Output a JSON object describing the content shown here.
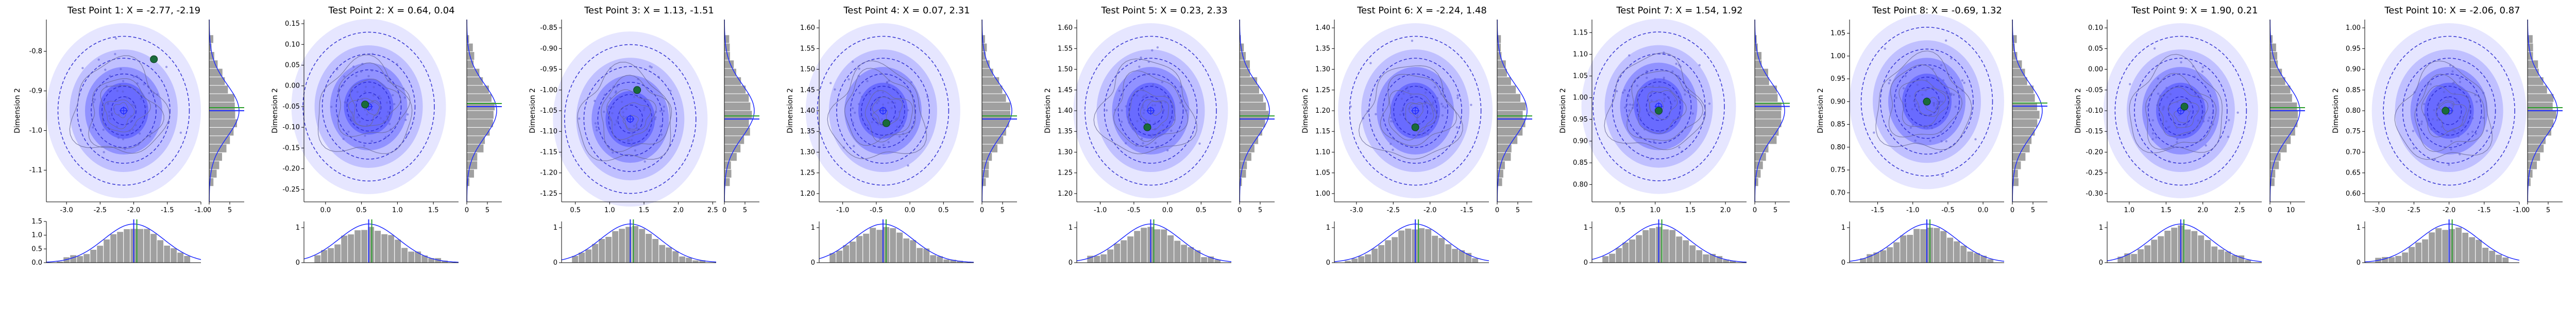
{
  "figure": {
    "panels": [
      {
        "title": "Test Point 1: X = -2.77, -2.19",
        "ylabel": "Dimension 2",
        "x_ticks": [
          "-3.0",
          "-2.5",
          "-2.0",
          "-1.5",
          "-1.0"
        ],
        "y_ticks": [
          "-0.8",
          "-0.9",
          "-1.0",
          "-1.1"
        ],
        "top_hist_ticks": [
          "0",
          "5"
        ],
        "bottom_hist_y_ticks": [
          "0.0",
          "0.5",
          "1.0",
          "1.5"
        ]
      },
      {
        "title": "Test Point 2: X = 0.64, 0.04",
        "ylabel": "Dimension 2",
        "x_ticks": [
          "0.0",
          "0.5",
          "1.0",
          "1.5"
        ],
        "y_ticks": [
          "0.15",
          "0.10",
          "0.05",
          "0.00",
          "-0.05",
          "-0.10",
          "-0.15",
          "-0.20",
          "-0.25"
        ],
        "top_hist_ticks": [
          "0",
          "5"
        ],
        "bottom_hist_y_ticks": [
          "0",
          "1"
        ]
      },
      {
        "title": "Test Point 3: X = 1.13, -1.51",
        "ylabel": "Dimension 2",
        "x_ticks": [
          "0.5",
          "1.0",
          "1.5",
          "2.0",
          "2.5"
        ],
        "y_ticks": [
          "-0.85",
          "-0.90",
          "-0.95",
          "-1.00",
          "-1.05",
          "-1.10",
          "-1.15",
          "-1.20",
          "-1.25"
        ],
        "top_hist_ticks": [
          "0",
          "5"
        ],
        "bottom_hist_y_ticks": [
          "0",
          "1"
        ]
      },
      {
        "title": "Test Point 4: X = 0.07, 2.31",
        "ylabel": "Dimension 2",
        "x_ticks": [
          "-1.0",
          "-0.5",
          "0.0",
          "0.5"
        ],
        "y_ticks": [
          "1.60",
          "1.55",
          "1.50",
          "1.45",
          "1.40",
          "1.35",
          "1.30",
          "1.25",
          "1.20"
        ],
        "top_hist_ticks": [
          "0",
          "5"
        ],
        "bottom_hist_y_ticks": [
          "0",
          "1"
        ]
      },
      {
        "title": "Test Point 5: X = 0.23, 2.33",
        "ylabel": "Dimension 2",
        "x_ticks": [
          "-1.0",
          "-0.5",
          "0.0",
          "0.5"
        ],
        "y_ticks": [
          "1.60",
          "1.55",
          "1.50",
          "1.45",
          "1.40",
          "1.35",
          "1.30",
          "1.25",
          "1.20"
        ],
        "top_hist_ticks": [
          "0",
          "5"
        ],
        "bottom_hist_y_ticks": [
          "0",
          "1"
        ]
      },
      {
        "title": "Test Point 6: X = -2.24, 1.48",
        "ylabel": "Dimension 2",
        "x_ticks": [
          "-3.0",
          "-2.5",
          "-2.0",
          "-1.5"
        ],
        "y_ticks": [
          "1.40",
          "1.35",
          "1.30",
          "1.25",
          "1.20",
          "1.15",
          "1.10",
          "1.05",
          "1.00"
        ],
        "top_hist_ticks": [
          "0",
          "5"
        ],
        "bottom_hist_y_ticks": [
          "0",
          "1"
        ]
      },
      {
        "title": "Test Point 7: X = 1.54, 1.92",
        "ylabel": "Dimension 2",
        "x_ticks": [
          "0.5",
          "1.0",
          "1.5",
          "2.0"
        ],
        "y_ticks": [
          "1.15",
          "1.10",
          "1.05",
          "1.00",
          "0.95",
          "0.90",
          "0.85",
          "0.80"
        ],
        "top_hist_ticks": [
          "0",
          "5"
        ],
        "bottom_hist_y_ticks": [
          "0",
          "1"
        ]
      },
      {
        "title": "Test Point 8: X = -0.69, 1.32",
        "ylabel": "Dimension 2",
        "x_ticks": [
          "-1.5",
          "-1.0",
          "-0.5",
          "0.0"
        ],
        "y_ticks": [
          "1.05",
          "1.00",
          "0.95",
          "0.90",
          "0.85",
          "0.80",
          "0.75",
          "0.70"
        ],
        "top_hist_ticks": [
          "0",
          "5"
        ],
        "bottom_hist_y_ticks": [
          "0",
          "1"
        ]
      },
      {
        "title": "Test Point 9: X = 1.90, 0.21",
        "ylabel": "Dimension 2",
        "x_ticks": [
          "1.0",
          "1.5",
          "2.0",
          "2.5"
        ],
        "y_ticks": [
          "0.10",
          "0.05",
          "0.00",
          "-0.05",
          "-0.10",
          "-0.15",
          "-0.20",
          "-0.25",
          "-0.30"
        ],
        "top_hist_ticks": [
          "0",
          "10"
        ],
        "bottom_hist_y_ticks": [
          "0",
          "1"
        ]
      },
      {
        "title": "Test Point 10: X = -2.06, 0.87",
        "ylabel": "Dimension 2",
        "x_ticks": [
          "-3.0",
          "-2.5",
          "-2.0",
          "-1.5",
          "-1.0"
        ],
        "y_ticks": [
          "1.00",
          "0.95",
          "0.90",
          "0.85",
          "0.80",
          "0.75",
          "0.70",
          "0.65",
          "0.60"
        ],
        "top_hist_ticks": [
          "0",
          "5"
        ],
        "bottom_hist_y_ticks": [
          "0",
          "1"
        ]
      }
    ]
  },
  "chart_data": [
    {
      "type": "scatter",
      "title": "Test Point 1: X = -2.77, -2.19",
      "ylabel": "Dimension 2",
      "xlim": [
        -3.3,
        -1.0
      ],
      "ylim": [
        -1.18,
        -0.72
      ],
      "gaussian_center": [
        -2.15,
        -0.95
      ],
      "marginal_x_mean": -2.0,
      "marginal_y_mean": -0.95,
      "green_marker": [
        -1.7,
        -0.82
      ],
      "series": [
        {
          "name": "blue_mean",
          "color": "#1f2bff"
        },
        {
          "name": "green_true",
          "color": "#2ca02c"
        },
        {
          "name": "histogram",
          "color": "#a0a0a0"
        }
      ]
    },
    {
      "type": "scatter",
      "title": "Test Point 2: X = 0.64, 0.04",
      "ylabel": "Dimension 2",
      "xlim": [
        -0.3,
        1.85
      ],
      "ylim": [
        -0.28,
        0.16
      ],
      "gaussian_center": [
        0.6,
        -0.05
      ],
      "marginal_x_mean": 0.6,
      "marginal_y_mean": -0.05,
      "green_marker": [
        0.55,
        -0.045
      ],
      "series": [
        {
          "name": "blue_mean",
          "color": "#1f2bff"
        },
        {
          "name": "green_true",
          "color": "#2ca02c"
        },
        {
          "name": "histogram",
          "color": "#a0a0a0"
        }
      ]
    },
    {
      "type": "scatter",
      "title": "Test Point 3: X = 1.13, -1.51",
      "ylabel": "Dimension 2",
      "xlim": [
        0.3,
        2.55
      ],
      "ylim": [
        -1.27,
        -0.83
      ],
      "gaussian_center": [
        1.3,
        -1.07
      ],
      "marginal_x_mean": 1.3,
      "marginal_y_mean": -1.07,
      "green_marker": [
        1.4,
        -1.0
      ],
      "series": [
        {
          "name": "blue_mean",
          "color": "#1f2bff"
        },
        {
          "name": "green_true",
          "color": "#2ca02c"
        },
        {
          "name": "histogram",
          "color": "#a0a0a0"
        }
      ]
    },
    {
      "type": "scatter",
      "title": "Test Point 4: X = 0.07, 2.31",
      "ylabel": "Dimension 2",
      "xlim": [
        -1.35,
        0.95
      ],
      "ylim": [
        1.18,
        1.62
      ],
      "gaussian_center": [
        -0.4,
        1.4
      ],
      "marginal_x_mean": -0.4,
      "marginal_y_mean": 1.38,
      "green_marker": [
        -0.35,
        1.37
      ],
      "series": [
        {
          "name": "blue_mean",
          "color": "#1f2bff"
        },
        {
          "name": "green_true",
          "color": "#2ca02c"
        },
        {
          "name": "histogram",
          "color": "#a0a0a0"
        }
      ]
    },
    {
      "type": "scatter",
      "title": "Test Point 5: X = 0.23, 2.33",
      "ylabel": "Dimension 2",
      "xlim": [
        -1.35,
        0.95
      ],
      "ylim": [
        1.18,
        1.62
      ],
      "gaussian_center": [
        -0.25,
        1.4
      ],
      "marginal_x_mean": -0.25,
      "marginal_y_mean": 1.38,
      "green_marker": [
        -0.3,
        1.36
      ],
      "series": [
        {
          "name": "blue_mean",
          "color": "#1f2bff"
        },
        {
          "name": "green_true",
          "color": "#2ca02c"
        },
        {
          "name": "histogram",
          "color": "#a0a0a0"
        }
      ]
    },
    {
      "type": "scatter",
      "title": "Test Point 6: X = -2.24, 1.48",
      "ylabel": "Dimension 2",
      "xlim": [
        -3.3,
        -1.2
      ],
      "ylim": [
        0.98,
        1.42
      ],
      "gaussian_center": [
        -2.2,
        1.2
      ],
      "marginal_x_mean": -2.2,
      "marginal_y_mean": 1.18,
      "green_marker": [
        -2.2,
        1.16
      ],
      "series": [
        {
          "name": "blue_mean",
          "color": "#1f2bff"
        },
        {
          "name": "green_true",
          "color": "#2ca02c"
        },
        {
          "name": "histogram",
          "color": "#a0a0a0"
        }
      ]
    },
    {
      "type": "scatter",
      "title": "Test Point 7: X = 1.54, 1.92",
      "ylabel": "Dimension 2",
      "xlim": [
        0.1,
        2.3
      ],
      "ylim": [
        0.76,
        1.18
      ],
      "gaussian_center": [
        1.05,
        0.98
      ],
      "marginal_x_mean": 1.05,
      "marginal_y_mean": 0.98,
      "green_marker": [
        1.05,
        0.97
      ],
      "series": [
        {
          "name": "blue_mean",
          "color": "#1f2bff"
        },
        {
          "name": "green_true",
          "color": "#2ca02c"
        },
        {
          "name": "histogram",
          "color": "#a0a0a0"
        }
      ]
    },
    {
      "type": "scatter",
      "title": "Test Point 8: X = -0.69, 1.32",
      "ylabel": "Dimension 2",
      "xlim": [
        -1.9,
        0.3
      ],
      "ylim": [
        0.68,
        1.08
      ],
      "gaussian_center": [
        -0.8,
        0.9
      ],
      "marginal_x_mean": -0.8,
      "marginal_y_mean": 0.89,
      "green_marker": [
        -0.8,
        0.9
      ],
      "series": [
        {
          "name": "blue_mean",
          "color": "#1f2bff"
        },
        {
          "name": "green_true",
          "color": "#2ca02c"
        },
        {
          "name": "histogram",
          "color": "#a0a0a0"
        }
      ]
    },
    {
      "type": "scatter",
      "title": "Test Point 9: X = 1.90, 0.21",
      "ylabel": "Dimension 2",
      "xlim": [
        0.7,
        2.8
      ],
      "ylim": [
        -0.32,
        0.12
      ],
      "gaussian_center": [
        1.7,
        -0.1
      ],
      "marginal_x_mean": 1.7,
      "marginal_y_mean": -0.1,
      "green_marker": [
        1.75,
        -0.09
      ],
      "series": [
        {
          "name": "blue_mean",
          "color": "#1f2bff"
        },
        {
          "name": "green_true",
          "color": "#2ca02c"
        },
        {
          "name": "histogram",
          "color": "#a0a0a0"
        }
      ]
    },
    {
      "type": "scatter",
      "title": "Test Point 10: X = -2.06, 0.87",
      "ylabel": "Dimension 2",
      "xlim": [
        -3.2,
        -1.0
      ],
      "ylim": [
        0.58,
        1.02
      ],
      "gaussian_center": [
        -2.0,
        0.8
      ],
      "marginal_x_mean": -2.0,
      "marginal_y_mean": 0.8,
      "green_marker": [
        -2.05,
        0.8
      ],
      "series": [
        {
          "name": "blue_mean",
          "color": "#1f2bff"
        },
        {
          "name": "green_true",
          "color": "#2ca02c"
        },
        {
          "name": "histogram",
          "color": "#a0a0a0"
        }
      ]
    }
  ]
}
